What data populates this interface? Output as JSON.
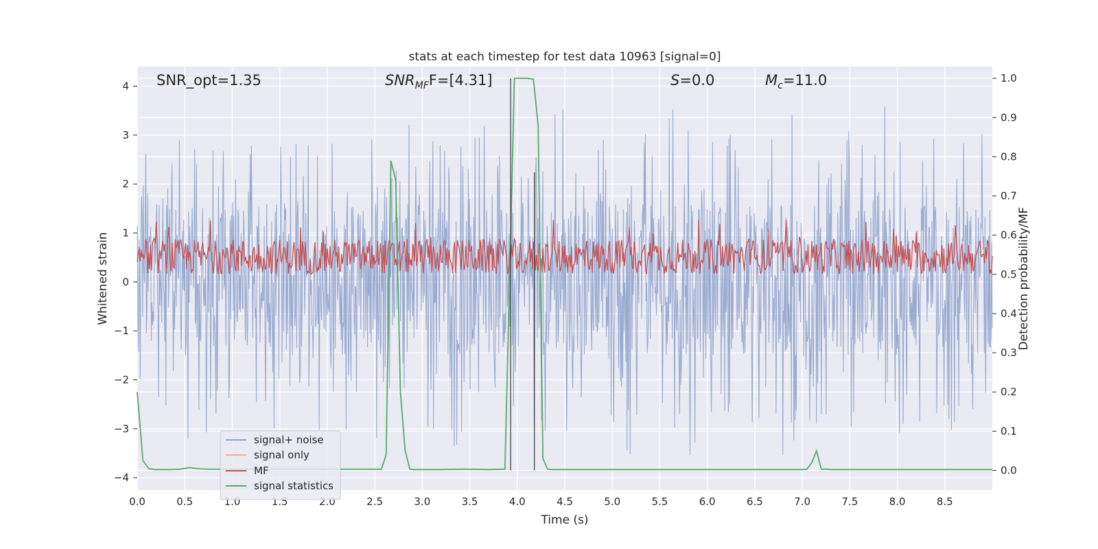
{
  "chart_data": {
    "type": "line",
    "title": "stats at each timestep for test data 10963 [signal=0]",
    "xlabel": "Time (s)",
    "ylabel_left": "Whitened strain",
    "ylabel_right": "Detection probability/MF",
    "xlim": [
      0,
      9
    ],
    "ylim_left": [
      -4.25,
      4.4
    ],
    "ylim_right": [
      -0.05,
      1.03
    ],
    "x_ticks": [
      "0.0",
      "0.5",
      "1.0",
      "1.5",
      "2.0",
      "2.5",
      "3.0",
      "3.5",
      "4.0",
      "4.5",
      "5.0",
      "5.5",
      "6.0",
      "6.5",
      "7.0",
      "7.5",
      "8.0",
      "8.5"
    ],
    "y_left_ticks": [
      "−4",
      "−3",
      "−2",
      "−1",
      "0",
      "1",
      "2",
      "3",
      "4"
    ],
    "y_right_ticks": [
      "0.0",
      "0.1",
      "0.2",
      "0.3",
      "0.4",
      "0.5",
      "0.6",
      "0.7",
      "0.8",
      "0.9",
      "1.0"
    ],
    "grid": true,
    "annotations": {
      "snr_opt": "SNR_opt=1.35",
      "snr_mf_main": "SNR",
      "snr_mf_sub": "MF",
      "snr_mf_value": "F=[4.31]",
      "s_label": "S",
      "s_value": "=0.0",
      "mc_main": "M",
      "mc_sub": "c",
      "mc_value": "=11.0"
    },
    "legend": {
      "position": "lower-left",
      "entries": [
        {
          "label": "signal+ noise",
          "color": "#8ea3cc"
        },
        {
          "label": "signal only",
          "color": "#f0ad8e"
        },
        {
          "label": "MF",
          "color": "#c44e52"
        },
        {
          "label": "signal statistics",
          "color": "#55a868"
        }
      ]
    },
    "series": [
      {
        "name": "signal statistics",
        "axis": "right",
        "color": "#55a868",
        "x": [
          0.0,
          0.06,
          0.12,
          0.18,
          0.25,
          0.35,
          0.45,
          0.55,
          0.65,
          0.75,
          0.9,
          1.1,
          1.3,
          1.5,
          1.7,
          1.9,
          2.1,
          2.3,
          2.5,
          2.57,
          2.62,
          2.67,
          2.72,
          2.77,
          2.82,
          2.87,
          2.92,
          3.0,
          3.2,
          3.45,
          3.7,
          3.87,
          3.92,
          3.97,
          4.02,
          4.1,
          4.17,
          4.22,
          4.27,
          4.32,
          4.37,
          4.45,
          4.6,
          4.8,
          5.0,
          5.5,
          6.0,
          6.5,
          7.0,
          7.05,
          7.1,
          7.15,
          7.2,
          7.25,
          7.3,
          7.35,
          7.5,
          8.0,
          8.5,
          9.0
        ],
        "y": [
          0.2,
          0.025,
          0.005,
          0.002,
          0.002,
          0.002,
          0.003,
          0.007,
          0.004,
          0.003,
          0.003,
          0.003,
          0.003,
          0.003,
          0.003,
          0.003,
          0.003,
          0.003,
          0.003,
          0.003,
          0.04,
          0.79,
          0.74,
          0.2,
          0.05,
          0.003,
          0.002,
          0.002,
          0.002,
          0.003,
          0.002,
          0.003,
          0.5,
          1.0,
          1.0,
          1.0,
          0.998,
          0.88,
          0.03,
          0.003,
          0.002,
          0.002,
          0.002,
          0.002,
          0.002,
          0.002,
          0.002,
          0.002,
          0.002,
          0.003,
          0.02,
          0.05,
          0.003,
          0.003,
          0.002,
          0.002,
          0.002,
          0.002,
          0.002,
          0.002
        ]
      }
    ],
    "dense_series": [
      {
        "name": "signal+ noise",
        "axis": "left",
        "color": "#8ea3cc",
        "x_range": [
          0,
          9
        ],
        "band": [
          -1.5,
          1.6
        ],
        "spike_range": [
          -4.0,
          4.0
        ]
      },
      {
        "name": "MF",
        "axis": "right",
        "color": "#c44e52",
        "x_range": [
          0,
          9
        ],
        "band": [
          0.5,
          0.59
        ],
        "spike_range": [
          0.5,
          0.64
        ]
      }
    ],
    "vertical_markers": [
      {
        "x": 3.93,
        "y_range": [
          0.0,
          1.0
        ]
      },
      {
        "x": 4.18,
        "y_range": [
          0.0,
          0.76
        ]
      }
    ]
  }
}
